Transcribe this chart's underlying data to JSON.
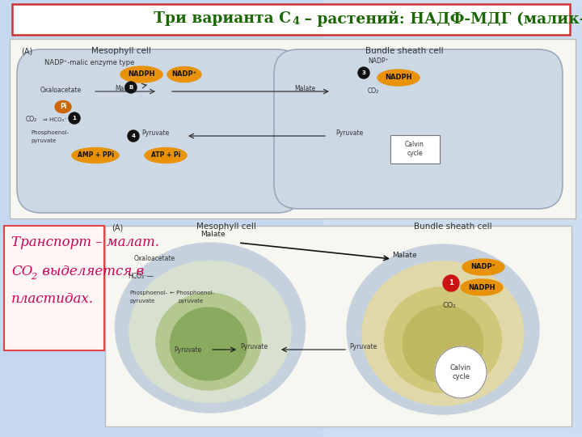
{
  "title_part1": "Три варианта С",
  "title_sub": "4",
  "title_part2": " – растений: НАДФ-МДГ (малик-энзим)",
  "title_color": "#1a6600",
  "title_fontsize": 13.5,
  "bg_color_top": "#c5d8f0",
  "bg_color_bottom": "#d8e8f8",
  "title_box_bg": "#ffffff",
  "title_box_edge": "#cc3333",
  "bottom_left_line1": "Транспорт – малат.",
  "bottom_left_line2a": "CO",
  "bottom_left_line2b": "2",
  "bottom_left_line2c": " выделяется в",
  "bottom_left_line3": "пластидах.",
  "text_color": "#cc0055",
  "text_fontsize": 12,
  "text_box_bg": "#fff5f5",
  "text_box_edge": "#dd4444",
  "top_img_bg": "#f5f5f0",
  "bot_img_bg": "#f5f5f0",
  "cell_outer_color": "#c8d4e0",
  "cell_border_color": "#b0bcc8",
  "cell_inner_color": "#dde8f5",
  "meso_label": "Mesophyll cell",
  "bs_label": "Bundle sheath cell",
  "orange_color": "#e8920a",
  "dark_color": "#1a1a1a"
}
